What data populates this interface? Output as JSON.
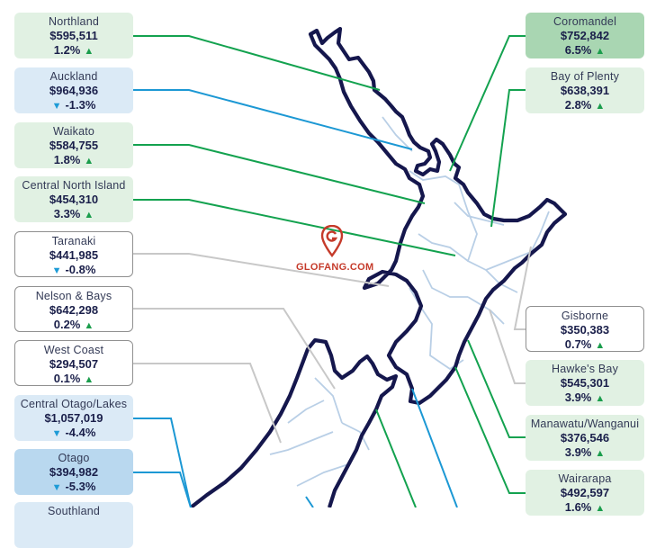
{
  "regions": [
    {
      "id": "northland",
      "name": "Northland",
      "price": "$595,511",
      "change": "1.2%",
      "direction": "up",
      "style": "c-green"
    },
    {
      "id": "auckland",
      "name": "Auckland",
      "price": "$964,936",
      "change": "-1.3%",
      "direction": "down",
      "style": "c-blue"
    },
    {
      "id": "waikato",
      "name": "Waikato",
      "price": "$584,755",
      "change": "1.8%",
      "direction": "up",
      "style": "c-green"
    },
    {
      "id": "central-north-island",
      "name": "Central North Island",
      "price": "$454,310",
      "change": "3.3%",
      "direction": "up",
      "style": "c-green"
    },
    {
      "id": "taranaki",
      "name": "Taranaki",
      "price": "$441,985",
      "change": "-0.8%",
      "direction": "down",
      "style": "c-white"
    },
    {
      "id": "nelson-bays",
      "name": "Nelson & Bays",
      "price": "$642,298",
      "change": "0.2%",
      "direction": "up",
      "style": "c-white"
    },
    {
      "id": "west-coast",
      "name": "West Coast",
      "price": "$294,507",
      "change": "0.1%",
      "direction": "up",
      "style": "c-white"
    },
    {
      "id": "central-otago",
      "name": "Central Otago/Lakes",
      "price": "$1,057,019",
      "change": "-4.4%",
      "direction": "down",
      "style": "c-blue"
    },
    {
      "id": "otago",
      "name": "Otago",
      "price": "$394,982",
      "change": "-5.3%",
      "direction": "down",
      "style": "c-blue-dark"
    },
    {
      "id": "coromandel",
      "name": "Coromandel",
      "price": "$752,842",
      "change": "6.5%",
      "direction": "up",
      "style": "c-green-dark"
    },
    {
      "id": "bay-of-plenty",
      "name": "Bay of Plenty",
      "price": "$638,391",
      "change": "2.8%",
      "direction": "up",
      "style": "c-green"
    },
    {
      "id": "gisborne",
      "name": "Gisborne",
      "price": "$350,383",
      "change": "0.7%",
      "direction": "up",
      "style": "c-white"
    },
    {
      "id": "hawkes-bay",
      "name": "Hawke's Bay",
      "price": "$545,301",
      "change": "3.9%",
      "direction": "up",
      "style": "c-green"
    },
    {
      "id": "manawatu",
      "name": "Manawatu/Wanganui",
      "price": "$376,546",
      "change": "3.9%",
      "direction": "up",
      "style": "c-green"
    },
    {
      "id": "wairarapa",
      "name": "Wairarapa",
      "price": "$492,597",
      "change": "1.6%",
      "direction": "up",
      "style": "c-green"
    },
    {
      "id": "southland",
      "name": "Southland",
      "price": "",
      "change": "",
      "direction": "up",
      "style": "c-blue"
    }
  ],
  "colors": {
    "coast": "#15174d",
    "region_border": "#b9cfe6",
    "line_up": "#13a24f",
    "line_down": "#1c98d4",
    "line_neutral": "#c8c8c8"
  },
  "arrows": {
    "up": "▲",
    "down": "▼"
  },
  "watermark": "GLOFANG.COM"
}
